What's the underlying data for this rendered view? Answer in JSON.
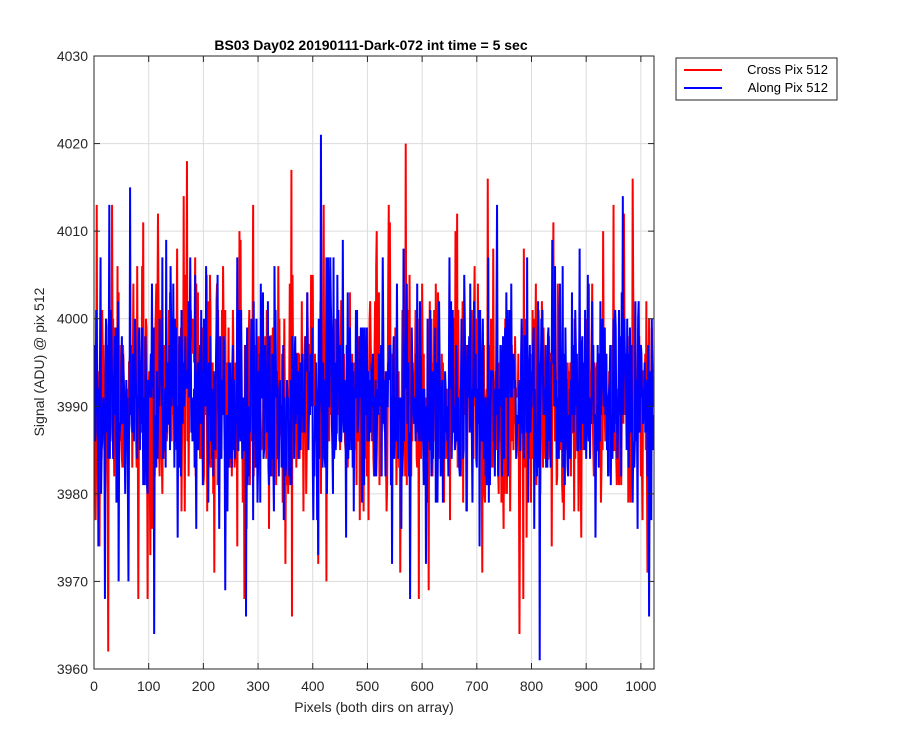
{
  "chart_data": {
    "type": "line",
    "title": "BS03 Day02 20190111-Dark-072 int time = 5 sec",
    "xlabel": "Pixels (both dirs on array)",
    "ylabel": "Signal (ADU) @ pix 512",
    "xlim": [
      0,
      1024
    ],
    "ylim": [
      3960,
      4030
    ],
    "xticks": [
      0,
      100,
      200,
      300,
      400,
      500,
      600,
      700,
      800,
      900,
      1000
    ],
    "yticks": [
      3960,
      3970,
      3980,
      3990,
      4000,
      4010,
      4020,
      4030
    ],
    "grid": true,
    "legend_position": "outside top-right",
    "series": [
      {
        "name": "Cross Pix 512",
        "color": "#ff0000",
        "noise_model": {
          "n_points": 1024,
          "mean": 3991,
          "std": 6.5,
          "min": 3962,
          "max": 4020,
          "seed": 11
        },
        "peaks": [
          [
            5,
            4013
          ],
          [
            10,
            3974
          ],
          [
            26,
            3962
          ],
          [
            33,
            4013
          ],
          [
            81,
            3968
          ],
          [
            90,
            4011
          ],
          [
            98,
            3968
          ],
          [
            117,
            4012
          ],
          [
            164,
            4014
          ],
          [
            170,
            4018
          ],
          [
            220,
            3971
          ],
          [
            275,
            3968
          ],
          [
            291,
            4013
          ],
          [
            350,
            3972
          ],
          [
            361,
            4017
          ],
          [
            362,
            3966
          ],
          [
            410,
            3972
          ],
          [
            420,
            4013
          ],
          [
            425,
            3970
          ],
          [
            560,
            3971
          ],
          [
            570,
            4020
          ],
          [
            612,
            3969
          ],
          [
            664,
            4012
          ],
          [
            710,
            3971
          ],
          [
            720,
            4016
          ],
          [
            778,
            3964
          ],
          [
            785,
            3968
          ],
          [
            840,
            4011
          ],
          [
            931,
            4010
          ],
          [
            950,
            4013
          ],
          [
            985,
            4016
          ],
          [
            1012,
            3971
          ]
        ]
      },
      {
        "name": "Along Pix 512",
        "color": "#0000ff",
        "noise_model": {
          "n_points": 1024,
          "mean": 3991,
          "std": 6.2,
          "min": 3961,
          "max": 4021,
          "seed": 29
        },
        "peaks": [
          [
            8,
            3974
          ],
          [
            12,
            4007
          ],
          [
            20,
            3968
          ],
          [
            28,
            4013
          ],
          [
            45,
            3970
          ],
          [
            66,
            4015
          ],
          [
            110,
            3964
          ],
          [
            140,
            4006
          ],
          [
            240,
            3969
          ],
          [
            262,
            4007
          ],
          [
            278,
            3966
          ],
          [
            330,
            4006
          ],
          [
            410,
            3973
          ],
          [
            415,
            4021
          ],
          [
            438,
            4007
          ],
          [
            545,
            3972
          ],
          [
            578,
            3968
          ],
          [
            650,
            4007
          ],
          [
            705,
            3974
          ],
          [
            737,
            4013
          ],
          [
            792,
            4007
          ],
          [
            815,
            3961
          ],
          [
            838,
            4009
          ],
          [
            888,
            4008
          ],
          [
            967,
            4014
          ],
          [
            1015,
            3966
          ]
        ]
      }
    ]
  }
}
